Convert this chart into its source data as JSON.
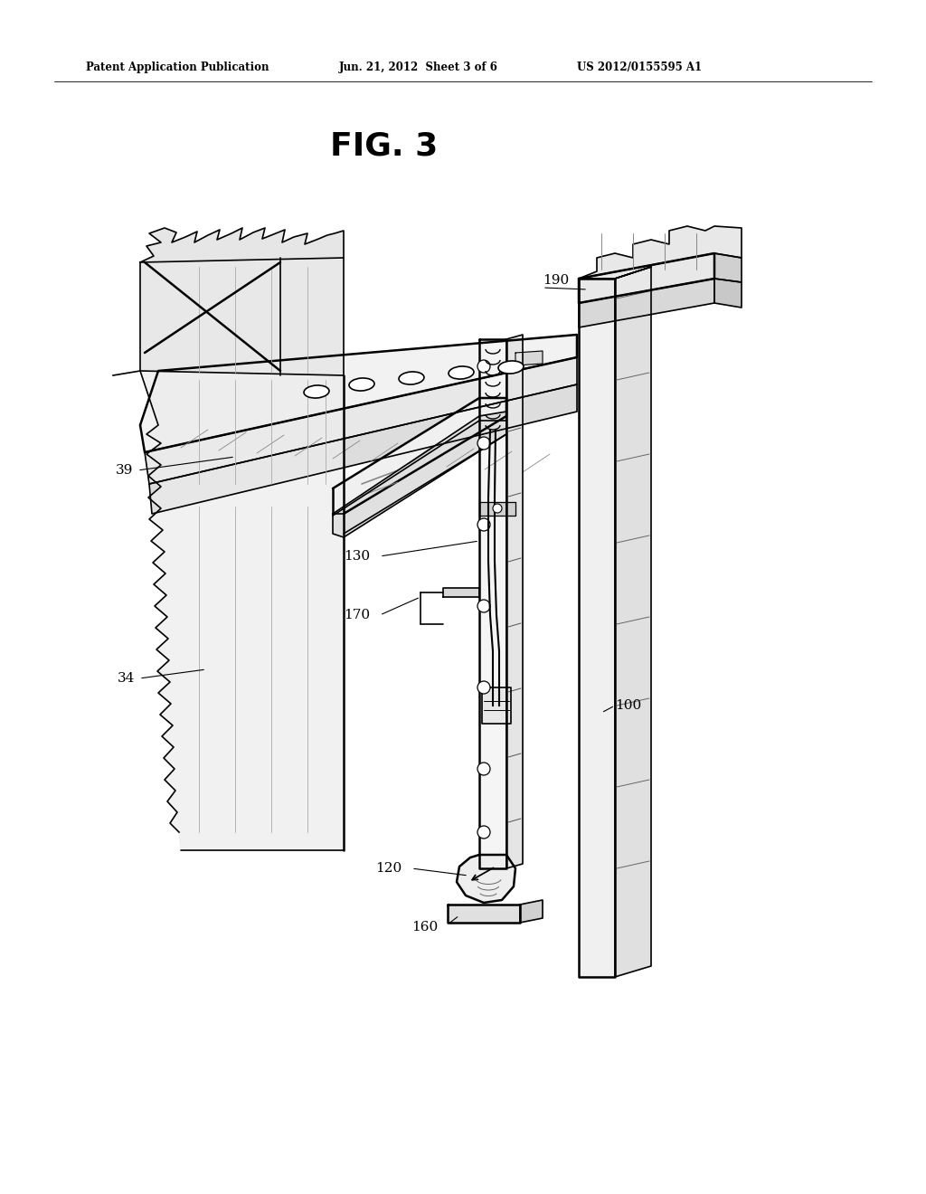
{
  "bg_color": "#ffffff",
  "line_color": "#000000",
  "fig_width": 10.24,
  "fig_height": 13.2,
  "header_text": "Patent Application Publication",
  "header_date": "Jun. 21, 2012  Sheet 3 of 6",
  "header_patent": "US 2012/0155595 A1",
  "figure_title": "FIG. 3",
  "label_fontsize": 11,
  "header_fontsize": 8.5,
  "title_fontsize": 26
}
